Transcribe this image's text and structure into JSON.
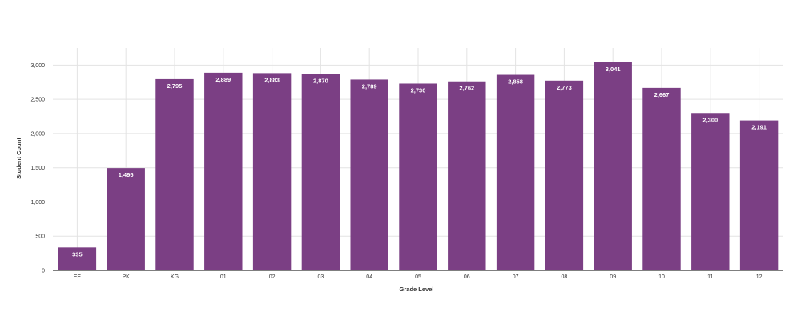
{
  "chart_data": {
    "type": "bar",
    "title": "",
    "xlabel": "Grade Level",
    "ylabel": "Student Count",
    "categories": [
      "EE",
      "PK",
      "KG",
      "01",
      "02",
      "03",
      "04",
      "05",
      "06",
      "07",
      "08",
      "09",
      "10",
      "11",
      "12"
    ],
    "values": [
      335,
      1495,
      2795,
      2889,
      2883,
      2870,
      2789,
      2730,
      2762,
      2858,
      2773,
      3041,
      2667,
      2300,
      2191
    ],
    "data_labels": [
      "335",
      "1,495",
      "2,795",
      "2,889",
      "2,883",
      "2,870",
      "2,789",
      "2,730",
      "2,762",
      "2,858",
      "2,773",
      "3,041",
      "2,667",
      "2,300",
      "2,191"
    ],
    "ylim": [
      0,
      3250
    ],
    "yticks": [
      0,
      500,
      1000,
      1500,
      2000,
      2500,
      3000
    ],
    "ytick_labels": [
      "0",
      "500",
      "1,000",
      "1,500",
      "2,000",
      "2,500",
      "3,000"
    ],
    "grid": true,
    "legend": "none",
    "bar_color": "#7b3f84",
    "axis_color": "#555555"
  }
}
